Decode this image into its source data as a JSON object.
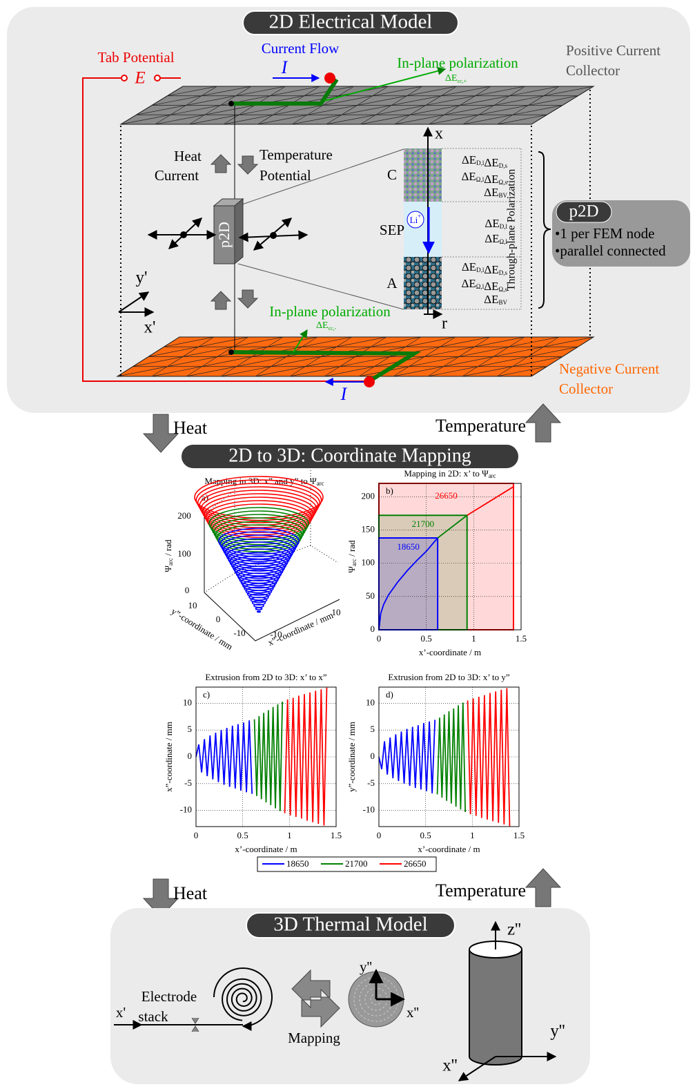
{
  "electrical_model": {
    "title": "2D Electrical Model",
    "tab_potential": "Tab Potential",
    "E": "E",
    "current_flow": "Current Flow",
    "I_top": "I",
    "inplane_top": "In-plane polarization",
    "dE_top": [
      "ΔE",
      "cc,+"
    ],
    "positive_cc": [
      "Positive Current",
      "Collector"
    ],
    "heat_current": [
      "Heat",
      "Current"
    ],
    "temperature_potential": [
      "Temperature",
      "Potential"
    ],
    "p2d_box": "p2D",
    "x_axis": "x",
    "r_axis": "r",
    "layers": [
      {
        "label": "C",
        "terms": [
          [
            "ΔE",
            "D,l"
          ],
          [
            "ΔE",
            "D,s"
          ],
          [
            "ΔE",
            "Ω,l"
          ],
          [
            "ΔE",
            "Ω,s"
          ],
          [
            "ΔE",
            "BV"
          ]
        ]
      },
      {
        "label": "SEP",
        "terms": [
          [
            "ΔE",
            "D,l"
          ],
          [
            "ΔE",
            "Ω,l"
          ]
        ]
      },
      {
        "label": "A",
        "terms": [
          [
            "ΔE",
            "D,l"
          ],
          [
            "ΔE",
            "D,s"
          ],
          [
            "ΔE",
            "Ω,l"
          ],
          [
            "ΔE",
            "Ω,s"
          ],
          [
            "ΔE",
            "BV"
          ]
        ]
      }
    ],
    "li": "Li",
    "li_sup": "+",
    "through_plane": "Through-plane Polarization",
    "p2d_note": {
      "title": "p2D",
      "bullets": [
        "•1 per FEM node",
        "•parallel connected"
      ]
    },
    "y_prime": "y'",
    "x_prime": "x'",
    "inplane_bottom": "In-plane polarization",
    "dE_bottom": [
      "ΔE",
      "cc,-"
    ],
    "negative_cc": [
      "Negative Current",
      "Collector"
    ],
    "I_bottom": "I"
  },
  "flow": {
    "heat_1": "Heat",
    "temperature_1": "Temperature",
    "mapping_title": "2D to 3D: Coordinate Mapping",
    "heat_2": "Heat",
    "temperature_2": "Temperature"
  },
  "plot_a": {
    "title": "Mapping in 3D: x” and y” to Ψ",
    "title_sub": "arc",
    "panel": "a)",
    "zlabel": "Ψ",
    "zlabel_sub": "arc",
    "zlabel_unit": " / rad",
    "zticks": [
      0,
      100,
      200
    ],
    "yticks": [
      10,
      0,
      -10
    ],
    "xticks": [
      -10,
      10
    ],
    "ylabel": "y”-coordinate / mm",
    "xlabel": "x”-coordinate / mm"
  },
  "chart_data": [
    {
      "type": "line",
      "title": "Mapping in 2D: x’ to Ψ",
      "title_sub": "arc",
      "panel": "b)",
      "xlabel": "x’-coordinate / m",
      "ylabel": "Ψ",
      "ylabel_sub": "arc",
      "ylabel_unit": " / rad",
      "xlim": [
        0,
        1.5
      ],
      "ylim": [
        0,
        220
      ],
      "xticks": [
        0,
        0.5,
        1,
        1.5
      ],
      "yticks": [
        0,
        50,
        100,
        150,
        200
      ],
      "grid": true,
      "shade_regions": true,
      "series": [
        {
          "name": "18650",
          "color": "#0000ff",
          "x": [
            0,
            0.02,
            0.05,
            0.1,
            0.2,
            0.3,
            0.4,
            0.5,
            0.62
          ],
          "values": [
            0,
            25,
            38,
            52,
            72,
            89,
            104,
            118,
            138
          ]
        },
        {
          "name": "21700",
          "color": "#008000",
          "x": [
            0.62,
            0.93
          ],
          "values": [
            138,
            172
          ]
        },
        {
          "name": "26650",
          "color": "#ff0000",
          "x": [
            0.93,
            1.42
          ],
          "values": [
            172,
            215
          ]
        }
      ]
    },
    {
      "type": "line",
      "title": "Extrusion from 2D to 3D: x’ to x”",
      "panel": "c)",
      "xlabel": "x’-coordinate / m",
      "ylabel": "x”-coordinate / mm",
      "xlim": [
        0,
        1.5
      ],
      "ylim": [
        -13,
        13
      ],
      "xticks": [
        0,
        0.5,
        1,
        1.5
      ],
      "yticks": [
        -10,
        -5,
        0,
        5,
        10
      ],
      "grid": true,
      "series": [
        {
          "name": "18650",
          "color": "#0000ff",
          "x": [
            0,
            0.03,
            0.06,
            0.09,
            0.12,
            0.15,
            0.18,
            0.21,
            0.24,
            0.27,
            0.3,
            0.33,
            0.36,
            0.39,
            0.42,
            0.45,
            0.48,
            0.51,
            0.54,
            0.57,
            0.6
          ],
          "values": [
            0,
            2.3,
            -2.9,
            3.3,
            -3.6,
            4.0,
            -4.2,
            4.5,
            -4.7,
            5.0,
            -5.2,
            5.4,
            -5.6,
            5.8,
            -5.9,
            6.1,
            -6.3,
            6.4,
            -6.6,
            6.8,
            -6.9
          ]
        },
        {
          "name": "21700",
          "color": "#008000",
          "x": [
            0.625,
            0.65,
            0.675,
            0.7,
            0.725,
            0.75,
            0.775,
            0.8,
            0.825,
            0.85,
            0.875,
            0.9,
            0.925
          ],
          "values": [
            7.0,
            -7.3,
            7.6,
            -7.9,
            8.2,
            -8.5,
            8.7,
            -9.0,
            9.3,
            -9.6,
            9.8,
            -10.1,
            10.3
          ]
        },
        {
          "name": "26650",
          "color": "#ff0000",
          "x": [
            0.95,
            0.98,
            1.01,
            1.04,
            1.07,
            1.1,
            1.13,
            1.16,
            1.19,
            1.22,
            1.25,
            1.28,
            1.31,
            1.34,
            1.37,
            1.4
          ],
          "values": [
            -10.5,
            10.7,
            -10.9,
            11.0,
            -11.2,
            11.4,
            -11.5,
            11.7,
            -11.9,
            12.0,
            -12.2,
            12.3,
            -12.5,
            12.6,
            -12.8,
            12.9
          ]
        }
      ]
    },
    {
      "type": "line",
      "title": "Extrusion from 2D to 3D: x’ to y”",
      "panel": "d)",
      "xlabel": "x’-coordinate / m",
      "ylabel": "y”-coordinate / mm",
      "xlim": [
        0,
        1.5
      ],
      "ylim": [
        -13,
        13
      ],
      "xticks": [
        0,
        0.5,
        1,
        1.5
      ],
      "yticks": [
        -10,
        -5,
        0,
        5,
        10
      ],
      "grid": true,
      "series": [
        {
          "name": "18650",
          "color": "#0000ff",
          "x": [
            0,
            0.03,
            0.06,
            0.09,
            0.12,
            0.15,
            0.18,
            0.21,
            0.24,
            0.27,
            0.3,
            0.33,
            0.36,
            0.39,
            0.42,
            0.45,
            0.48,
            0.51,
            0.54,
            0.57,
            0.6
          ],
          "values": [
            0,
            -2.3,
            2.9,
            -3.3,
            3.6,
            -4.0,
            4.2,
            -4.5,
            4.7,
            -5.0,
            5.2,
            -5.4,
            5.6,
            -5.8,
            5.9,
            -6.1,
            6.3,
            -6.4,
            6.6,
            -6.8,
            6.9
          ]
        },
        {
          "name": "21700",
          "color": "#008000",
          "x": [
            0.625,
            0.65,
            0.675,
            0.7,
            0.725,
            0.75,
            0.775,
            0.8,
            0.825,
            0.85,
            0.875,
            0.9,
            0.925
          ],
          "values": [
            -7.0,
            7.3,
            -7.6,
            7.9,
            -8.2,
            8.5,
            -8.7,
            9.0,
            -9.3,
            9.6,
            -9.8,
            10.1,
            -10.3
          ]
        },
        {
          "name": "26650",
          "color": "#ff0000",
          "x": [
            0.95,
            0.98,
            1.01,
            1.04,
            1.07,
            1.1,
            1.13,
            1.16,
            1.19,
            1.22,
            1.25,
            1.28,
            1.31,
            1.34,
            1.37,
            1.4
          ],
          "values": [
            10.5,
            -10.7,
            10.9,
            -11.0,
            11.2,
            -11.4,
            11.5,
            -11.7,
            11.9,
            -12.0,
            12.2,
            -12.3,
            12.5,
            -12.6,
            12.8,
            -12.9
          ]
        }
      ]
    }
  ],
  "thermal_model": {
    "title": "3D Thermal Model",
    "electrode_stack": [
      "Electrode",
      "stack"
    ],
    "x_prime": "x'",
    "mapping": "Mapping",
    "disc_y": "y''",
    "disc_x": "x''",
    "z": "z''",
    "y": "y''",
    "x": "x''"
  }
}
